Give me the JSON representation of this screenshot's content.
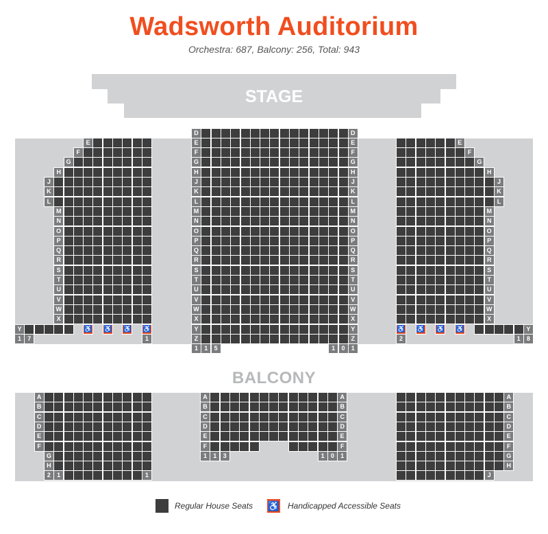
{
  "header": {
    "title": "Wadsworth Auditorium",
    "subtitle": "Orchestra: 687, Balcony: 256, Total: 943"
  },
  "stage": {
    "label": "STAGE"
  },
  "balcony": {
    "label": "BALCONY"
  },
  "colors": {
    "title": "#f04e1f",
    "seat": "#3d3d3d",
    "accessible": "#f04e23",
    "row_label": "#7b7c7e",
    "floor": "#d1d2d4"
  },
  "icons": {
    "accessible": "wheelchair-icon"
  },
  "orchestra": {
    "left": {
      "rows": [
        "E",
        "F",
        "G",
        "H",
        "J",
        "K",
        "L",
        "M",
        "N",
        "O",
        "P",
        "Q",
        "R",
        "S",
        "T",
        "U",
        "V",
        "W",
        "X",
        "Y"
      ],
      "seat_counts": [
        6,
        7,
        8,
        9,
        10,
        10,
        10,
        9,
        9,
        9,
        9,
        9,
        9,
        9,
        9,
        9,
        9,
        9,
        9,
        5
      ],
      "accessible_seats_row_Y": 4,
      "seat_numbers": [
        "1",
        "7",
        "1"
      ]
    },
    "center": {
      "rows": [
        "D",
        "E",
        "F",
        "G",
        "H",
        "J",
        "K",
        "L",
        "M",
        "N",
        "O",
        "P",
        "Q",
        "R",
        "S",
        "T",
        "U",
        "V",
        "W",
        "X",
        "Y",
        "Z"
      ],
      "seats_per_row": 15,
      "seat_numbers": [
        "1",
        "1",
        "5",
        "1",
        "0",
        "1"
      ]
    },
    "right": {
      "rows": [
        "E",
        "F",
        "G",
        "H",
        "J",
        "K",
        "L",
        "M",
        "N",
        "O",
        "P",
        "Q",
        "R",
        "S",
        "T",
        "U",
        "V",
        "W",
        "X",
        "Y"
      ],
      "seat_counts": [
        6,
        7,
        8,
        9,
        10,
        10,
        10,
        9,
        9,
        9,
        9,
        9,
        9,
        9,
        9,
        9,
        9,
        9,
        9,
        5
      ],
      "accessible_seats_row_Y": 4,
      "seat_numbers": [
        "2",
        "1",
        "8"
      ]
    }
  },
  "balcony_sections": {
    "left": {
      "rows": [
        "A",
        "B",
        "C",
        "D",
        "E",
        "F",
        "G",
        "H"
      ],
      "seat_numbers": [
        "2",
        "1",
        "1"
      ]
    },
    "center": {
      "rows": [
        "A",
        "B",
        "C",
        "D",
        "E",
        "F"
      ],
      "seat_numbers": [
        "1",
        "1",
        "3",
        "1",
        "0",
        "1"
      ]
    },
    "right": {
      "rows": [
        "A",
        "B",
        "C",
        "D",
        "E",
        "F",
        "G",
        "H",
        "J"
      ]
    }
  },
  "legend": {
    "regular": "Regular House Seats",
    "accessible": "Handicapped Accessible Seats"
  }
}
